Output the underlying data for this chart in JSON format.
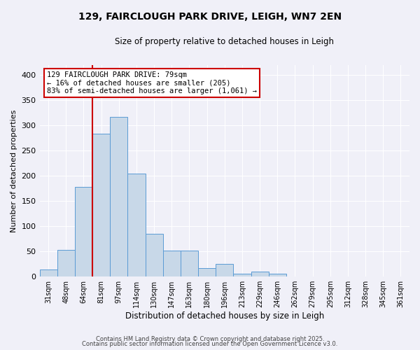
{
  "title": "129, FAIRCLOUGH PARK DRIVE, LEIGH, WN7 2EN",
  "subtitle": "Size of property relative to detached houses in Leigh",
  "xlabel": "Distribution of detached houses by size in Leigh",
  "ylabel": "Number of detached properties",
  "bar_labels": [
    "31sqm",
    "48sqm",
    "64sqm",
    "81sqm",
    "97sqm",
    "114sqm",
    "130sqm",
    "147sqm",
    "163sqm",
    "180sqm",
    "196sqm",
    "213sqm",
    "229sqm",
    "246sqm",
    "262sqm",
    "279sqm",
    "295sqm",
    "312sqm",
    "328sqm",
    "345sqm",
    "361sqm"
  ],
  "bar_values": [
    14,
    53,
    178,
    283,
    317,
    204,
    84,
    51,
    51,
    16,
    24,
    5,
    9,
    5,
    0,
    0,
    0,
    0,
    0,
    0,
    0
  ],
  "bar_color": "#c8d8e8",
  "bar_edge_color": "#5b9bd5",
  "ylim": [
    0,
    420
  ],
  "yticks": [
    0,
    50,
    100,
    150,
    200,
    250,
    300,
    350,
    400
  ],
  "vline_color": "#cc0000",
  "annotation_title": "129 FAIRCLOUGH PARK DRIVE: 79sqm",
  "annotation_line1": "← 16% of detached houses are smaller (205)",
  "annotation_line2": "83% of semi-detached houses are larger (1,061) →",
  "annotation_box_color": "#ffffff",
  "annotation_box_edge": "#cc0000",
  "footer1": "Contains HM Land Registry data © Crown copyright and database right 2025.",
  "footer2": "Contains public sector information licensed under the Open Government Licence v3.0.",
  "bg_color": "#f0f0f8"
}
